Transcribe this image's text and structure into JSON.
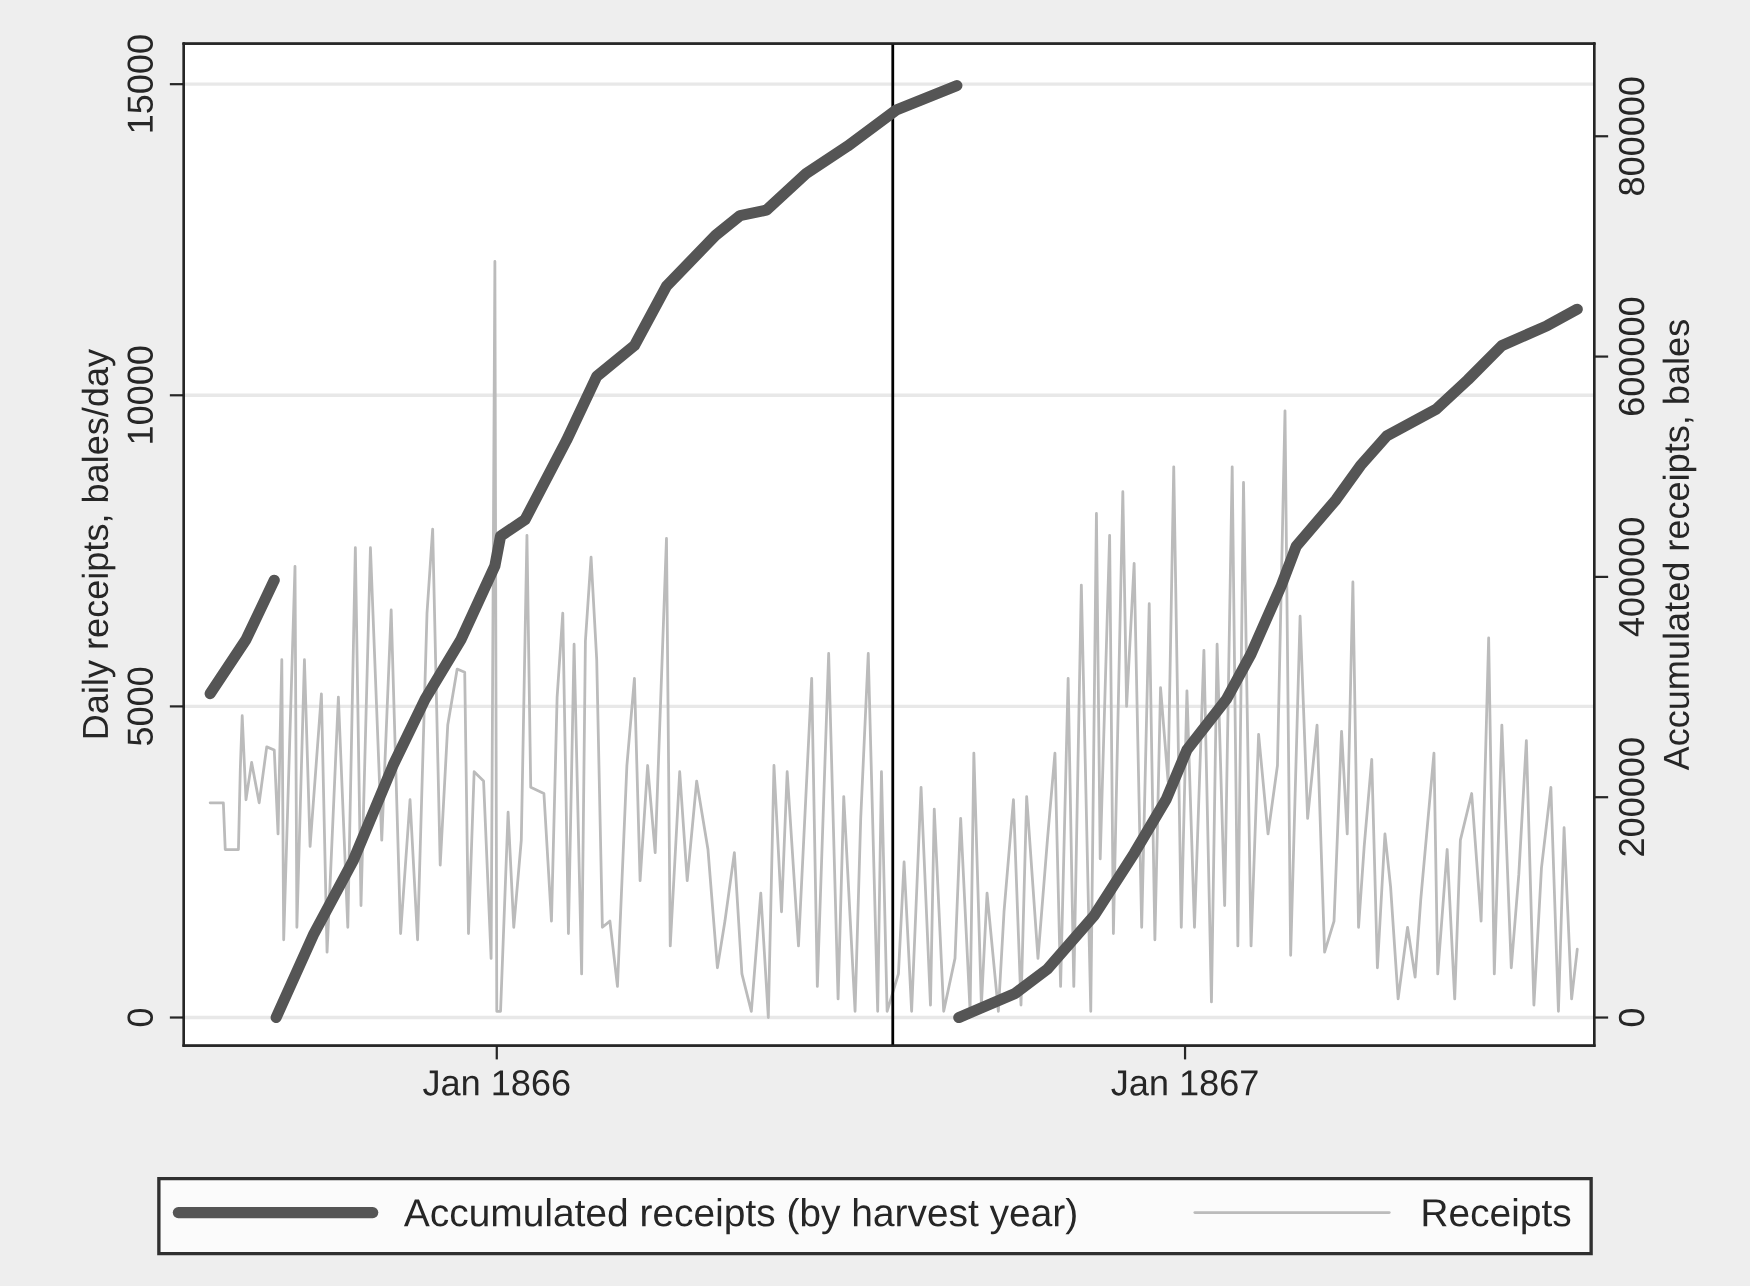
{
  "chart_data": {
    "type": "line",
    "xlabel": null,
    "ylabel": "Daily receipts, bales/day",
    "y2label": "Accumulated receipts, bales",
    "xlim": [
      "1865-07-19",
      "1867-08-06"
    ],
    "xticks": [
      {
        "value": "1866-01-01",
        "label": "Jan 1866"
      },
      {
        "value": "1867-01-01",
        "label": "Jan 1867"
      }
    ],
    "ylim": [
      -450,
      15650
    ],
    "yticks": [
      0,
      5000,
      10000,
      15000
    ],
    "y2lim": [
      -25400,
      884000
    ],
    "y2ticks": [
      0,
      200000,
      400000,
      600000,
      800000
    ],
    "grid": "y",
    "legend": "bottom",
    "ref_lines": [
      {
        "axis": "x",
        "value": "1866-07-30",
        "color": "#000000"
      }
    ],
    "series": [
      {
        "name": "Accumulated receipts (by harvest year)",
        "axis": "y2",
        "color": "#555555",
        "x": [
          "1865-08-02",
          "1865-08-21",
          "1865-09-05",
          "1865-09-05T12:00",
          "1865-09-06",
          "1865-09-26",
          "1865-10-17",
          "1865-11-07",
          "1865-11-24",
          "1865-12-13",
          "1865-12-31",
          "1866-01-03",
          "1866-01-16",
          "1866-02-07",
          "1866-02-23",
          "1866-03-15",
          "1866-04-01",
          "1866-04-27",
          "1866-05-10",
          "1866-05-24",
          "1866-06-14",
          "1866-07-06",
          "1866-08-01",
          "1866-09-02",
          "1866-09-02T12:00",
          "1866-09-03",
          "1866-10-03",
          "1866-10-20",
          "1866-11-14",
          "1866-12-05",
          "1866-12-22",
          "1867-01-02",
          "1867-01-23",
          "1867-02-05",
          "1867-02-21",
          "1867-03-01",
          "1867-03-22",
          "1867-04-04",
          "1867-04-18",
          "1867-05-14",
          "1867-05-31",
          "1867-06-18",
          "1867-07-12",
          "1867-07-28"
        ],
        "values": [
          294000,
          343000,
          397000,
          null,
          0,
          76000,
          143000,
          229000,
          289000,
          343000,
          410000,
          437000,
          452000,
          524000,
          582000,
          610000,
          664000,
          710000,
          728000,
          733000,
          766000,
          791000,
          824000,
          846000,
          null,
          0,
          22000,
          44000,
          93000,
          149000,
          198000,
          243000,
          289000,
          330000,
          392000,
          428000,
          470000,
          501000,
          528000,
          552000,
          579000,
          610000,
          628000,
          643000
        ]
      },
      {
        "name": "Receipts",
        "color": "#bbbbbb",
        "x": [
          "1865-08-02",
          "1865-08-09",
          "1865-08-10",
          "1865-08-17",
          "1865-08-18",
          "1865-08-19",
          "1865-08-21",
          "1865-08-24",
          "1865-08-28",
          "1865-09-01",
          "1865-09-05",
          "1865-09-07",
          "1865-09-09",
          "1865-09-10",
          "1865-09-16",
          "1865-09-17",
          "1865-09-21",
          "1865-09-24",
          "1865-09-30",
          "1865-10-03",
          "1865-10-09",
          "1865-10-14",
          "1865-10-18",
          "1865-10-21",
          "1865-10-26",
          "1865-11-01",
          "1865-11-06",
          "1865-11-11",
          "1865-11-16",
          "1865-11-20",
          "1865-11-25",
          "1865-11-28",
          "1865-12-02",
          "1865-12-06",
          "1865-12-11",
          "1865-12-15",
          "1865-12-17",
          "1865-12-20",
          "1865-12-25",
          "1865-12-29",
          "1865-12-31",
          "1866-01-01",
          "1866-01-03",
          "1866-01-07",
          "1866-01-10",
          "1866-01-14",
          "1866-01-17",
          "1866-01-19",
          "1866-01-26",
          "1866-01-30",
          "1866-02-02",
          "1866-02-05",
          "1866-02-08",
          "1866-02-11",
          "1866-02-15",
          "1866-02-17",
          "1866-02-20",
          "1866-02-23",
          "1866-02-26",
          "1866-03-02",
          "1866-03-06",
          "1866-03-11",
          "1866-03-15",
          "1866-03-18",
          "1866-03-22",
          "1866-03-26",
          "1866-04-01",
          "1866-04-03",
          "1866-04-08",
          "1866-04-12",
          "1866-04-17",
          "1866-04-23",
          "1866-04-28",
          "1866-05-02",
          "1866-05-07",
          "1866-05-11",
          "1866-05-16",
          "1866-05-21",
          "1866-05-25",
          "1866-05-28",
          "1866-06-01",
          "1866-06-04",
          "1866-06-10",
          "1866-06-17",
          "1866-06-20",
          "1866-06-26",
          "1866-07-01",
          "1866-07-04",
          "1866-07-10",
          "1866-07-13",
          "1866-07-17",
          "1866-07-22",
          "1866-07-24",
          "1866-07-27",
          "1866-08-02",
          "1866-08-05",
          "1866-08-09",
          "1866-08-14",
          "1866-08-19",
          "1866-08-21",
          "1866-08-26",
          "1866-09-01",
          "1866-09-04",
          "1866-09-09",
          "1866-09-11",
          "1866-09-15",
          "1866-09-18",
          "1866-09-24",
          "1866-09-27",
          "1866-10-02",
          "1866-10-06",
          "1866-10-09",
          "1866-10-15",
          "1866-10-20",
          "1866-10-24",
          "1866-10-27",
          "1866-10-31",
          "1866-11-03",
          "1866-11-07",
          "1866-11-12",
          "1866-11-15",
          "1866-11-17",
          "1866-11-22",
          "1866-11-24",
          "1866-11-29",
          "1866-12-01",
          "1866-12-05",
          "1866-12-09",
          "1866-12-13",
          "1866-12-16",
          "1866-12-19",
          "1866-12-23",
          "1866-12-26",
          "1866-12-30",
          "1867-01-02",
          "1867-01-06",
          "1867-01-11",
          "1867-01-15",
          "1867-01-18",
          "1867-01-22",
          "1867-01-26",
          "1867-01-29",
          "1867-02-01",
          "1867-02-05",
          "1867-02-09",
          "1867-02-14",
          "1867-02-19",
          "1867-02-23",
          "1867-02-26",
          "1867-03-03",
          "1867-03-07",
          "1867-03-12",
          "1867-03-16",
          "1867-03-21",
          "1867-03-25",
          "1867-03-28",
          "1867-03-31",
          "1867-04-03",
          "1867-04-06",
          "1867-04-10",
          "1867-04-13",
          "1867-04-17",
          "1867-04-20",
          "1867-04-24",
          "1867-04-29",
          "1867-05-03",
          "1867-05-06",
          "1867-05-13",
          "1867-05-15",
          "1867-05-20",
          "1867-05-24",
          "1867-05-27",
          "1867-06-02",
          "1867-06-07",
          "1867-06-11",
          "1867-06-14",
          "1867-06-18",
          "1867-06-23",
          "1867-06-27",
          "1867-07-01",
          "1867-07-05",
          "1867-07-09",
          "1867-07-14",
          "1867-07-18",
          "1867-07-21",
          "1867-07-25",
          "1867-07-28"
        ],
        "values": [
          3450,
          3450,
          2700,
          2700,
          4000,
          4850,
          3500,
          4100,
          3450,
          4350,
          4300,
          2950,
          5750,
          1250,
          7250,
          1450,
          5750,
          2750,
          5200,
          1050,
          5150,
          1450,
          7550,
          1800,
          7550,
          2850,
          6550,
          1350,
          3500,
          1250,
          6500,
          7850,
          2450,
          4700,
          5600,
          5550,
          1350,
          3950,
          3800,
          950,
          12150,
          100,
          100,
          3300,
          1450,
          2850,
          7750,
          3700,
          3600,
          1550,
          5150,
          6500,
          1350,
          6000,
          700,
          6050,
          7400,
          5750,
          1450,
          1550,
          500,
          4050,
          5450,
          2200,
          4050,
          2650,
          7700,
          1150,
          3950,
          2200,
          3800,
          2700,
          800,
          1550,
          2650,
          700,
          100,
          2000,
          0,
          4050,
          1700,
          3950,
          1150,
          5450,
          500,
          5850,
          300,
          3550,
          100,
          3200,
          5850,
          100,
          3950,
          100,
          700,
          2500,
          100,
          3700,
          200,
          3350,
          100,
          950,
          3200,
          100,
          4250,
          200,
          2000,
          100,
          1700,
          3500,
          200,
          3550,
          950,
          2850,
          4250,
          500,
          5450,
          500,
          6950,
          100,
          8100,
          2550,
          7750,
          1350,
          8450,
          5000,
          7300,
          1450,
          6650,
          1250,
          5300,
          3800,
          8850,
          1450,
          5250,
          1450,
          5900,
          250,
          6000,
          1800,
          8850,
          1150,
          8600,
          1150,
          4550,
          2950,
          4050,
          9750,
          1000,
          6450,
          3200,
          4700,
          1050,
          1550,
          4600,
          2950,
          7000,
          1450,
          2750,
          4150,
          800,
          2950,
          2100,
          300,
          1450,
          650,
          1900,
          4250,
          700,
          2700,
          300,
          2850,
          3600,
          1550,
          6100,
          700,
          4700,
          800,
          2300,
          4450,
          200,
          2400,
          3700,
          100,
          3050,
          300,
          1100
        ]
      }
    ]
  }
}
